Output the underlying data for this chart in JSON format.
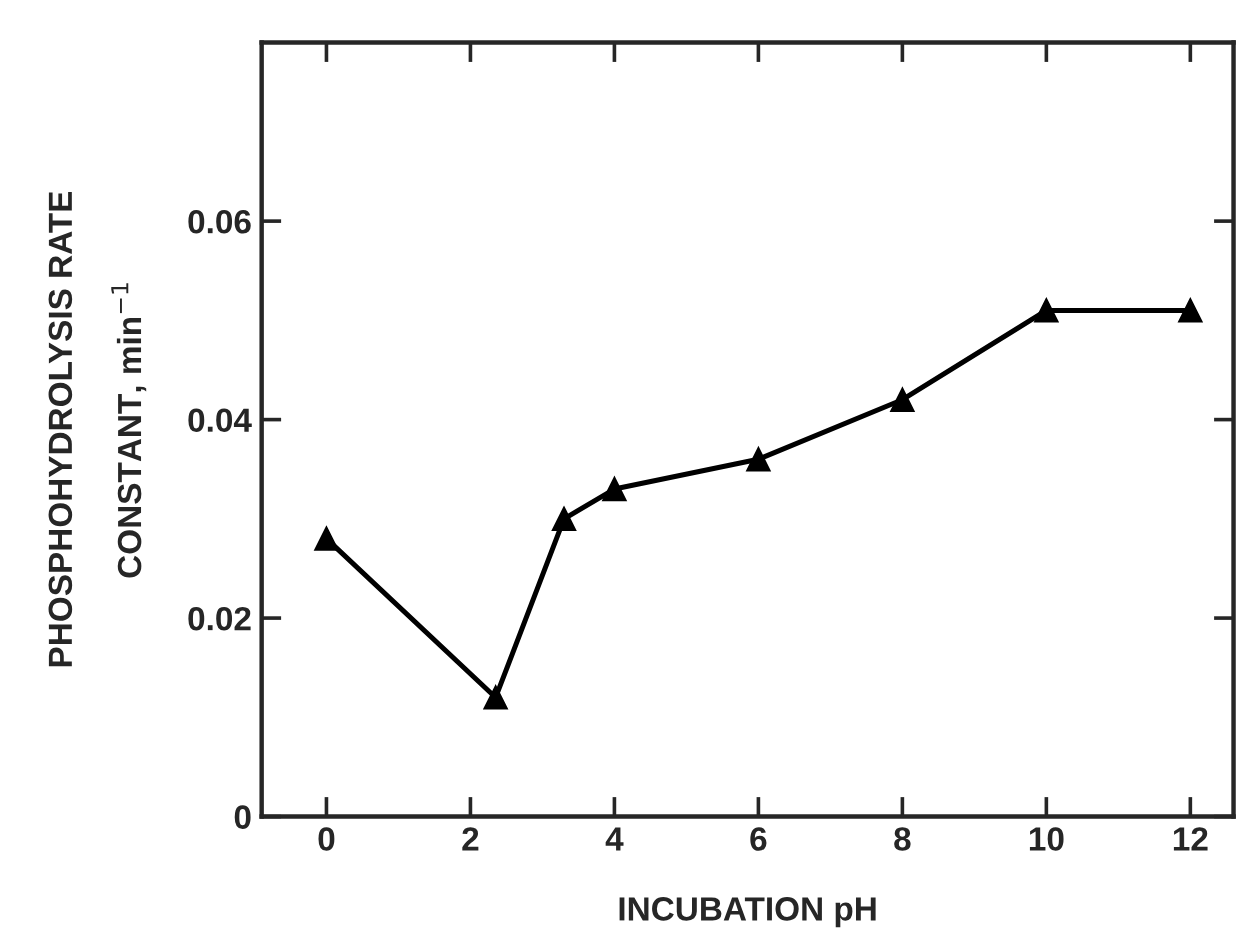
{
  "chart_data": {
    "type": "line",
    "xlabel": "INCUBATION pH",
    "ylabel": "PHOSPHOHYDROLYSIS RATE\nCONSTANT, min$^{−1}$",
    "x": [
      0,
      2.35,
      3.3,
      4,
      6,
      8,
      10,
      12
    ],
    "series": [
      {
        "color": "#000000",
        "values": [
          0.028,
          0.012,
          0.03,
          0.033,
          0.036,
          0.042,
          0.051,
          0.051
        ]
      }
    ],
    "xlim": [
      -0.9,
      12.6
    ],
    "xticks": [
      0,
      2,
      4,
      6,
      8,
      10,
      12
    ],
    "ylim": [
      0,
      0.078
    ],
    "yticks": [
      {
        "value": 0,
        "label": "0"
      },
      {
        "value": 0.02,
        "label": "0.02"
      },
      {
        "value": 0.04,
        "label": "0.04"
      },
      {
        "value": 0.06,
        "label": "0.06"
      }
    ],
    "marker": "triangle",
    "line_style": "solid",
    "grid": false,
    "legend": false
  }
}
